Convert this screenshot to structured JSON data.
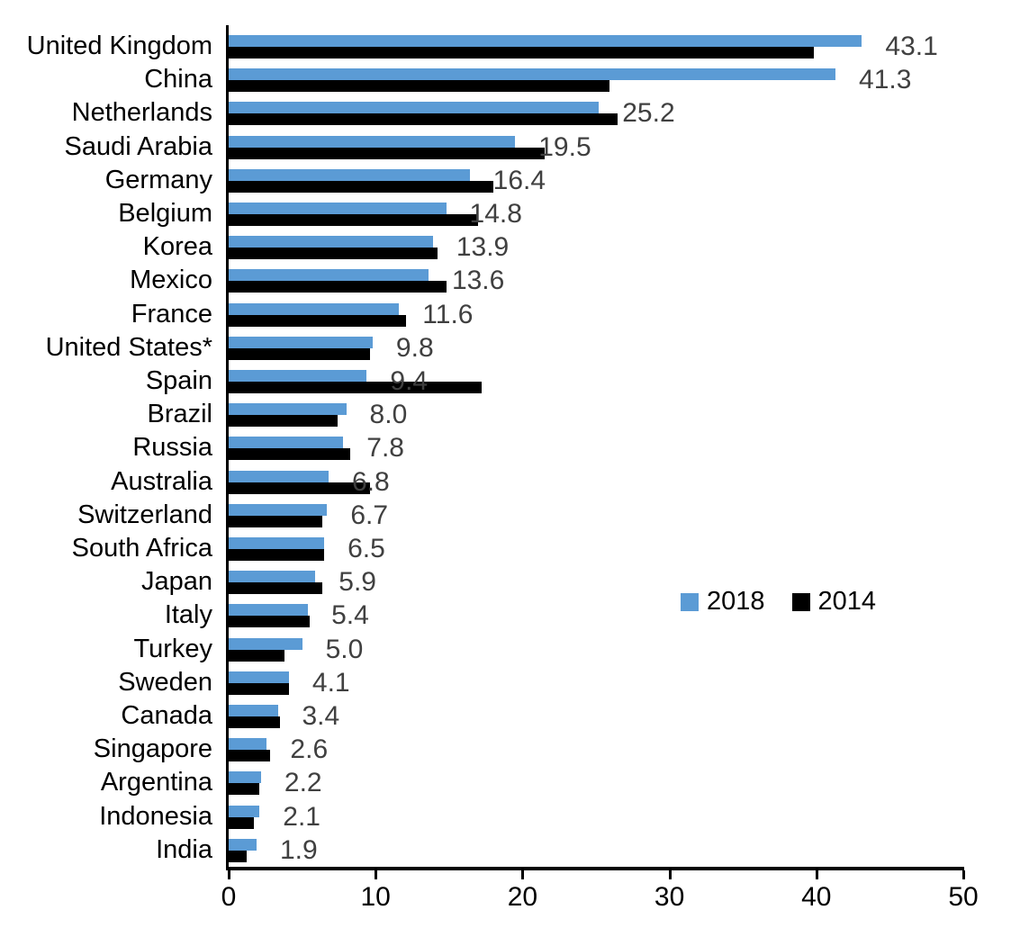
{
  "chart_data": {
    "type": "bar",
    "orientation": "horizontal",
    "title": "",
    "xlabel": "",
    "ylabel": "",
    "xlim": [
      0,
      50
    ],
    "x_ticks": [
      "0",
      "10",
      "20",
      "30",
      "40",
      "50"
    ],
    "grid": false,
    "legend_position": "inside-right",
    "categories": [
      "United Kingdom",
      "China",
      "Netherlands",
      "Saudi Arabia",
      "Germany",
      "Belgium",
      "Korea",
      "Mexico",
      "France",
      "United States*",
      "Spain",
      "Brazil",
      "Russia",
      "Australia",
      "Switzerland",
      "South Africa",
      "Japan",
      "Italy",
      "Turkey",
      "Sweden",
      "Canada",
      "Singapore",
      "Argentina",
      "Indonesia",
      "India"
    ],
    "series": [
      {
        "name": "2018",
        "color": "#5B9BD5",
        "values": [
          43.1,
          41.3,
          25.2,
          19.5,
          16.4,
          14.8,
          13.9,
          13.6,
          11.6,
          9.8,
          9.4,
          8.0,
          7.8,
          6.8,
          6.7,
          6.5,
          5.9,
          5.4,
          5.0,
          4.1,
          3.4,
          2.6,
          2.2,
          2.1,
          1.9
        ]
      },
      {
        "name": "2014",
        "color": "#000000",
        "values": [
          39.8,
          25.9,
          26.5,
          21.5,
          18.0,
          17.0,
          14.2,
          14.8,
          12.1,
          9.6,
          17.2,
          7.4,
          8.3,
          9.6,
          6.4,
          6.5,
          6.4,
          5.5,
          3.8,
          4.1,
          3.5,
          2.8,
          2.1,
          1.7,
          1.2
        ]
      }
    ],
    "data_labels": [
      "43.1",
      "41.3",
      "25.2",
      "19.5",
      "16.4",
      "14.8",
      "13.9",
      "13.6",
      "11.6",
      "9.8",
      "9.4",
      "8.0",
      "7.8",
      "6.8",
      "6.7",
      "6.5",
      "5.9",
      "5.4",
      "5.0",
      "4.1",
      "3.4",
      "2.6",
      "2.2",
      "2.1",
      "1.9"
    ],
    "data_label_series": "2018"
  },
  "legend": {
    "items": [
      {
        "label": "2018",
        "color": "#5B9BD5"
      },
      {
        "label": "2014",
        "color": "#000000"
      }
    ]
  },
  "colors": {
    "series_2018": "#5B9BD5",
    "series_2014": "#000000",
    "data_label_text": "#404040",
    "axis": "#000000",
    "background": "#FFFFFF"
  }
}
